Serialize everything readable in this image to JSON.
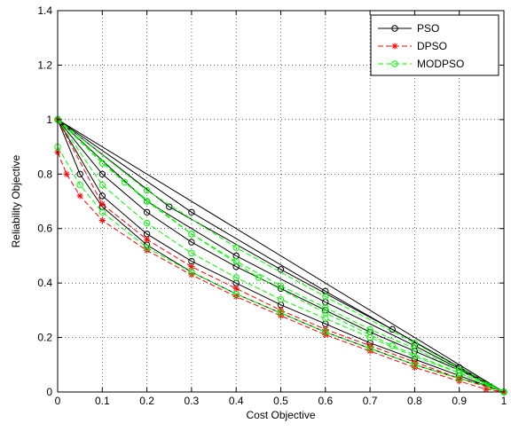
{
  "chart_data": {
    "type": "line",
    "title": "",
    "xlabel": "Cost Objective",
    "ylabel": "Reliability Objective",
    "xlim": [
      0,
      1
    ],
    "ylim": [
      0,
      1.4
    ],
    "xticks": [
      0,
      0.1,
      0.2,
      0.3,
      0.4,
      0.5,
      0.6,
      0.7,
      0.8,
      0.9,
      1
    ],
    "xtick_labels": [
      "0",
      "0.1",
      "0.2",
      "0.3",
      "0.4",
      "0.5",
      "0.6",
      "0.7",
      "0.8",
      "0.9",
      "1"
    ],
    "yticks": [
      0,
      0.2,
      0.4,
      0.6,
      0.8,
      1,
      1.2,
      1.4
    ],
    "ytick_labels": [
      "0",
      "0.2",
      "0.4",
      "0.6",
      "0.8",
      "1",
      "1.2",
      "1.4"
    ],
    "grid": true,
    "legend_position": "top-right",
    "series": [
      {
        "name": "PSO",
        "color": "#000000",
        "marker": "circle",
        "lines": [
          {
            "x": [
              0,
              0.05,
              0.1,
              0.2,
              0.3,
              0.4,
              0.5,
              0.6,
              0.7,
              0.8,
              0.9,
              0.97,
              1
            ],
            "y": [
              1,
              0.8,
              0.68,
              0.54,
              0.44,
              0.36,
              0.29,
              0.22,
              0.16,
              0.1,
              0.05,
              0.02,
              0
            ]
          },
          {
            "x": [
              0,
              0.1,
              0.2,
              0.3,
              0.4,
              0.5,
              0.6,
              0.7,
              0.8,
              0.9,
              1
            ],
            "y": [
              1,
              0.72,
              0.58,
              0.48,
              0.4,
              0.32,
              0.25,
              0.18,
              0.12,
              0.06,
              0
            ]
          },
          {
            "x": [
              0,
              0.1,
              0.2,
              0.3,
              0.4,
              0.5,
              0.6,
              0.7,
              0.8,
              0.9,
              1
            ],
            "y": [
              1,
              0.8,
              0.66,
              0.55,
              0.46,
              0.38,
              0.3,
              0.22,
              0.15,
              0.08,
              0
            ]
          },
          {
            "x": [
              0,
              0.2,
              0.4,
              0.6,
              0.8,
              1
            ],
            "y": [
              1,
              0.7,
              0.5,
              0.33,
              0.17,
              0
            ]
          },
          {
            "x": [
              0,
              0.25,
              0.5,
              0.75,
              1
            ],
            "y": [
              1,
              0.68,
              0.45,
              0.23,
              0
            ]
          },
          {
            "x": [
              0,
              1
            ],
            "y": [
              1,
              0
            ]
          },
          {
            "x": [
              0,
              0.3,
              0.6,
              0.9,
              1
            ],
            "y": [
              1,
              0.66,
              0.37,
              0.09,
              0
            ]
          }
        ]
      },
      {
        "name": "DPSO",
        "color": "#ff0000",
        "marker": "asterisk",
        "lines": [
          {
            "x": [
              0,
              0.02,
              0.05,
              0.1,
              0.2,
              0.3,
              0.4,
              0.5,
              0.6,
              0.7,
              0.8,
              0.9,
              0.96,
              1
            ],
            "y": [
              0.88,
              0.8,
              0.72,
              0.63,
              0.52,
              0.43,
              0.35,
              0.28,
              0.21,
              0.15,
              0.09,
              0.04,
              0.01,
              0
            ]
          },
          {
            "x": [
              0,
              0.1,
              0.2,
              0.3,
              0.4,
              0.5,
              0.6,
              0.7,
              0.8,
              0.9,
              1
            ],
            "y": [
              1,
              0.69,
              0.56,
              0.46,
              0.38,
              0.3,
              0.23,
              0.17,
              0.11,
              0.05,
              0
            ]
          }
        ]
      },
      {
        "name": "MODPSO",
        "color": "#00ff00",
        "marker": "circle",
        "lines": [
          {
            "x": [
              0,
              0.05,
              0.1,
              0.2,
              0.3,
              0.4,
              0.5,
              0.6,
              0.7,
              0.8,
              0.9,
              0.97,
              1
            ],
            "y": [
              0.9,
              0.76,
              0.66,
              0.53,
              0.44,
              0.36,
              0.29,
              0.22,
              0.16,
              0.1,
              0.05,
              0.02,
              0
            ]
          },
          {
            "x": [
              0,
              0.1,
              0.2,
              0.3,
              0.4,
              0.5,
              0.6,
              0.7,
              0.8,
              0.9,
              1
            ],
            "y": [
              1,
              0.76,
              0.62,
              0.51,
              0.42,
              0.34,
              0.27,
              0.2,
              0.13,
              0.07,
              0
            ]
          },
          {
            "x": [
              0,
              0.1,
              0.2,
              0.3,
              0.4,
              0.5,
              0.6,
              0.7,
              0.8,
              0.9,
              1
            ],
            "y": [
              1,
              0.84,
              0.7,
              0.58,
              0.48,
              0.39,
              0.31,
              0.23,
              0.16,
              0.08,
              0
            ]
          },
          {
            "x": [
              0,
              0.15,
              0.3,
              0.45,
              0.6,
              0.75,
              0.9,
              1
            ],
            "y": [
              1,
              0.77,
              0.58,
              0.42,
              0.29,
              0.17,
              0.07,
              0
            ]
          },
          {
            "x": [
              0,
              0.2,
              0.4,
              0.6,
              0.8,
              1
            ],
            "y": [
              1,
              0.74,
              0.53,
              0.35,
              0.18,
              0
            ]
          }
        ]
      }
    ]
  }
}
